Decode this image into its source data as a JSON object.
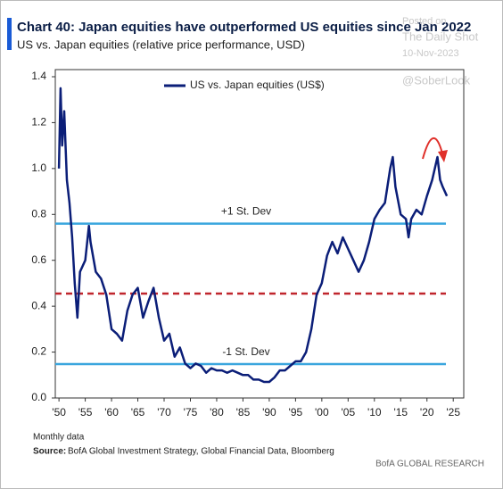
{
  "chart_data": {
    "type": "line",
    "title": "Chart 40: Japan equities have outperformed US equities since Jan 2022",
    "subtitle": "US vs. Japan equities (relative price performance, USD)",
    "series": [
      {
        "name": "US vs. Japan equities (US$)",
        "color": "#0b1e78",
        "x": [
          1950,
          1950.3,
          1950.6,
          1951,
          1951.5,
          1952,
          1952.5,
          1953,
          1953.5,
          1954,
          1955,
          1955.7,
          1956,
          1957,
          1958,
          1959,
          1960,
          1961,
          1962,
          1963,
          1964,
          1965,
          1966,
          1967,
          1968,
          1969,
          1970,
          1971,
          1972,
          1973,
          1974,
          1975,
          1976,
          1977,
          1978,
          1979,
          1980,
          1981,
          1982,
          1983,
          1984,
          1985,
          1986,
          1987,
          1988,
          1989,
          1990,
          1991,
          1992,
          1993,
          1994,
          1995,
          1996,
          1997,
          1998,
          1999,
          2000,
          2001,
          2002,
          2003,
          2004,
          2005,
          2006,
          2007,
          2008,
          2009,
          2010,
          2011,
          2012,
          2013,
          2013.5,
          2014,
          2015,
          2016,
          2016.5,
          2017,
          2018,
          2019,
          2020,
          2021,
          2022,
          2022.5,
          2023,
          2023.8
        ],
        "values": [
          1.0,
          1.35,
          1.1,
          1.25,
          0.95,
          0.85,
          0.7,
          0.5,
          0.35,
          0.55,
          0.6,
          0.75,
          0.68,
          0.55,
          0.52,
          0.45,
          0.3,
          0.28,
          0.25,
          0.38,
          0.45,
          0.48,
          0.35,
          0.42,
          0.48,
          0.35,
          0.25,
          0.28,
          0.18,
          0.22,
          0.15,
          0.13,
          0.15,
          0.14,
          0.11,
          0.13,
          0.12,
          0.12,
          0.11,
          0.12,
          0.11,
          0.1,
          0.1,
          0.08,
          0.08,
          0.07,
          0.07,
          0.09,
          0.12,
          0.12,
          0.14,
          0.16,
          0.16,
          0.2,
          0.3,
          0.45,
          0.5,
          0.62,
          0.68,
          0.63,
          0.7,
          0.65,
          0.6,
          0.55,
          0.6,
          0.68,
          0.78,
          0.82,
          0.85,
          1.0,
          1.05,
          0.92,
          0.8,
          0.78,
          0.7,
          0.78,
          0.82,
          0.8,
          0.88,
          0.95,
          1.05,
          0.95,
          0.92,
          0.88
        ]
      }
    ],
    "reference_lines": [
      {
        "value": 0.76,
        "label": "+1 St. Dev",
        "color": "#3aa6de",
        "dashed": false
      },
      {
        "value": 0.455,
        "color": "#c0262d",
        "dashed": true
      },
      {
        "value": 0.148,
        "label": "-1 St. Dev",
        "color": "#3aa6de",
        "dashed": false
      }
    ],
    "xlim": [
      1949.3,
      2027
    ],
    "ylim": [
      0,
      1.4
    ],
    "xticks": [
      {
        "value": 1950,
        "label": "'50"
      },
      {
        "value": 1955,
        "label": "'55"
      },
      {
        "value": 1960,
        "label": "'60"
      },
      {
        "value": 1965,
        "label": "'65"
      },
      {
        "value": 1970,
        "label": "'70"
      },
      {
        "value": 1975,
        "label": "'75"
      },
      {
        "value": 1980,
        "label": "'80"
      },
      {
        "value": 1985,
        "label": "'85"
      },
      {
        "value": 1990,
        "label": "'90"
      },
      {
        "value": 1995,
        "label": "'95"
      },
      {
        "value": 2000,
        "label": "'00"
      },
      {
        "value": 2005,
        "label": "'05"
      },
      {
        "value": 2010,
        "label": "'10"
      },
      {
        "value": 2015,
        "label": "'15"
      },
      {
        "value": 2020,
        "label": "'20"
      },
      {
        "value": 2025,
        "label": "'25"
      }
    ],
    "yticks": [
      {
        "value": 0,
        "label": "0.0"
      },
      {
        "value": 0.2,
        "label": "0.2"
      },
      {
        "value": 0.4,
        "label": "0.4"
      },
      {
        "value": 0.6,
        "label": "0.6"
      },
      {
        "value": 0.8,
        "label": "0.8"
      },
      {
        "value": 1.0,
        "label": "1.0"
      },
      {
        "value": 1.2,
        "label": "1.2"
      },
      {
        "value": 1.4,
        "label": "1.4"
      }
    ],
    "grid": false,
    "legend": "top-left",
    "note": "Monthly data",
    "source_label": "Source:",
    "source": "BofA Global Investment Strategy, Global Financial Data, Bloomberg",
    "branding": "BofA GLOBAL RESEARCH",
    "watermark": [
      "Posted on",
      "The Daily Shot",
      "10-Nov-2023",
      "@SoberLook"
    ]
  }
}
